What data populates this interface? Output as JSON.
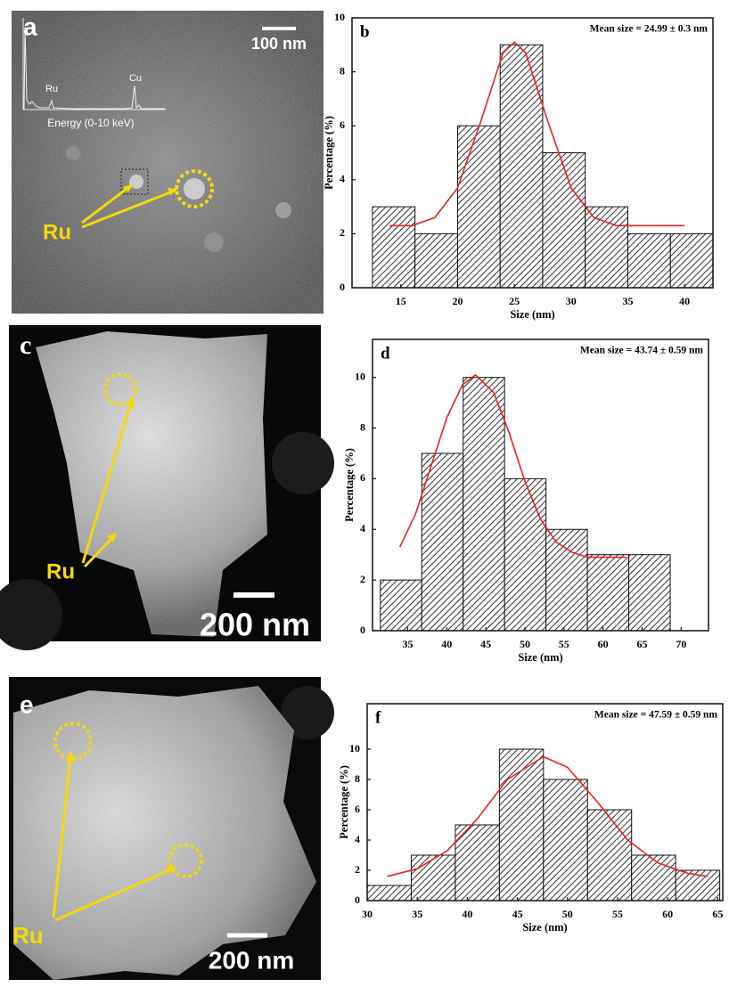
{
  "images": [
    {
      "letter": "a",
      "scale_bar": "100 nm",
      "label": "Ru",
      "inset": {
        "peaks": [
          "Ru",
          "Cu"
        ],
        "axis_label": "Energy (0-10 keV)"
      }
    },
    {
      "letter": "c",
      "scale_bar": "200 nm",
      "label": "Ru"
    },
    {
      "letter": "e",
      "scale_bar": "200 nm",
      "label": "Ru"
    }
  ],
  "chart_data": [
    {
      "type": "histogram",
      "label": "b",
      "annotation": "Mean size = 24.99 ± 0.3 nm",
      "xlabel": "Size (nm)",
      "ylabel": "Percentage (%)",
      "bins": [
        12.5,
        16.25,
        20,
        23.75,
        27.5,
        31.25,
        35,
        38.75,
        42.5
      ],
      "values": [
        3,
        2,
        6,
        9,
        5,
        3,
        2,
        2
      ],
      "color": "#333333",
      "xlim": [
        10.7,
        42.5
      ],
      "ylim": [
        0,
        10
      ],
      "xticks": [
        15,
        20,
        25,
        30,
        35,
        40
      ],
      "yticks": [
        0,
        2,
        4,
        6,
        8,
        10
      ],
      "fit": {
        "x": [
          14,
          16,
          18,
          20,
          22,
          24,
          25,
          26,
          28,
          30,
          32,
          34,
          36,
          38,
          40
        ],
        "values": [
          2.3,
          2.3,
          2.6,
          3.7,
          6.1,
          8.7,
          9.1,
          8.7,
          6.1,
          3.7,
          2.6,
          2.3,
          2.3,
          2.3,
          2.3
        ],
        "color": "#e8231e"
      }
    },
    {
      "type": "histogram",
      "label": "d",
      "annotation": "Mean size = 43.74 ± 0.59 nm",
      "xlabel": "Size (nm)",
      "ylabel": "Percentage (%)",
      "bins": [
        31.5,
        36.8,
        42.1,
        47.4,
        52.7,
        58,
        63.3,
        68.6
      ],
      "values": [
        2,
        7,
        10,
        6,
        4,
        3,
        3
      ],
      "color": "#333333",
      "xlim": [
        30.5,
        73.5
      ],
      "ylim": [
        0,
        11.5
      ],
      "xticks": [
        35,
        40,
        45,
        50,
        55,
        60,
        65,
        70
      ],
      "yticks": [
        0,
        2,
        4,
        6,
        8,
        10
      ],
      "fit": {
        "x": [
          34,
          36,
          38,
          40,
          42,
          43.7,
          46,
          48,
          50,
          52,
          54,
          56,
          58,
          60,
          63
        ],
        "values": [
          3.3,
          4.6,
          6.5,
          8.4,
          9.7,
          10.1,
          9.4,
          7.8,
          5.9,
          4.4,
          3.5,
          3.1,
          2.9,
          2.9,
          2.9
        ],
        "color": "#e8231e"
      }
    },
    {
      "type": "histogram",
      "label": "f",
      "annotation": "Mean size = 47.59 ± 0.59 nm",
      "xlabel": "Size (nm)",
      "ylabel": "Percentage (%)",
      "bins": [
        30,
        34.4,
        38.8,
        43.2,
        47.6,
        52,
        56.4,
        60.8,
        65.2
      ],
      "values": [
        1,
        3,
        5,
        10,
        8,
        6,
        3,
        2
      ],
      "color": "#333333",
      "xlim": [
        30,
        65.5
      ],
      "ylim": [
        0,
        13
      ],
      "xticks": [
        30,
        35,
        40,
        45,
        50,
        55,
        60,
        65
      ],
      "yticks": [
        0,
        2,
        4,
        6,
        8,
        10
      ],
      "fit": {
        "x": [
          32,
          35,
          38,
          41,
          44,
          47.6,
          50,
          53,
          56,
          59,
          62,
          64
        ],
        "values": [
          1.6,
          2.1,
          3.3,
          5.4,
          8.0,
          9.5,
          8.8,
          6.5,
          4.0,
          2.5,
          1.8,
          1.6
        ],
        "color": "#e8231e"
      }
    }
  ]
}
